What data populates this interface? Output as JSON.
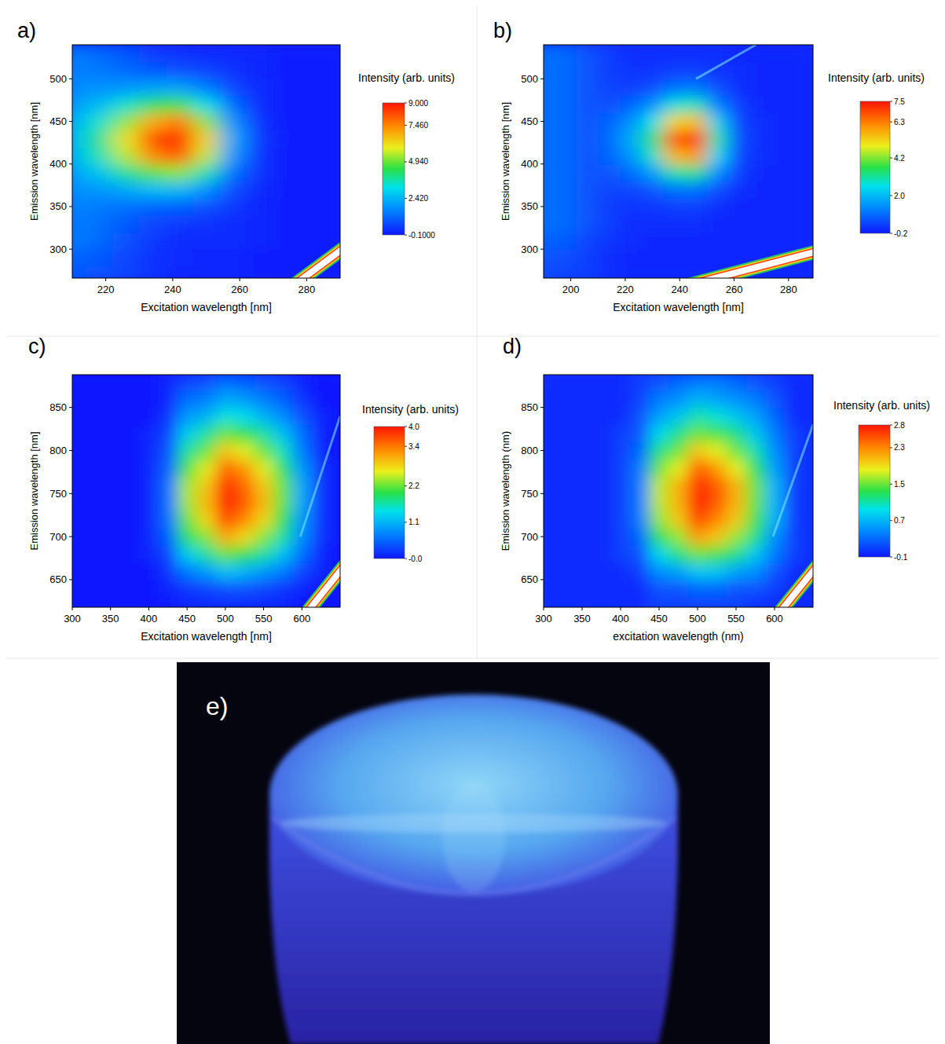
{
  "chart_data": [
    {
      "type": "heatmap",
      "panel_label": "a)",
      "xlabel": "Excitation wavelength [nm]",
      "ylabel": "Emission wavelength [nm]",
      "xlim": [
        210,
        290
      ],
      "ylim": [
        266,
        540
      ],
      "xticks": [
        220,
        240,
        260,
        280
      ],
      "yticks": [
        300,
        350,
        400,
        450,
        500
      ],
      "x": [
        210,
        218,
        226,
        234,
        242,
        250,
        258,
        266,
        274,
        282,
        290
      ],
      "y": [
        270,
        290,
        310,
        330,
        350,
        370,
        390,
        410,
        430,
        450,
        470,
        490,
        510,
        530
      ],
      "cells": [
        [
          1.0,
          0.8,
          0.6,
          0.3,
          0.1,
          0.1,
          0.1,
          0,
          0,
          0,
          0
        ],
        [
          1.1,
          0.9,
          0.6,
          0.3,
          0.2,
          0.1,
          0.1,
          0,
          0,
          0,
          0
        ],
        [
          1.5,
          1.2,
          0.8,
          0.4,
          0.2,
          0.2,
          0.2,
          0.1,
          0,
          0,
          0
        ],
        [
          1.5,
          1.3,
          0.9,
          0.6,
          0.4,
          0.3,
          0.2,
          0.1,
          0,
          0,
          0
        ],
        [
          1.6,
          1.4,
          1.3,
          1.1,
          1.0,
          0.8,
          0.4,
          0.1,
          0,
          0,
          0
        ],
        [
          1.8,
          1.9,
          2.2,
          2.5,
          2.5,
          1.8,
          0.7,
          0.2,
          0,
          0,
          0
        ],
        [
          2.1,
          2.7,
          3.8,
          4.8,
          5.2,
          3.6,
          1.3,
          0.3,
          0,
          0,
          0
        ],
        [
          2.5,
          3.6,
          5.5,
          7.4,
          8.1,
          5.6,
          1.9,
          0.3,
          0,
          0,
          0
        ],
        [
          2.6,
          3.9,
          6.1,
          8.3,
          9.0,
          6.3,
          2.2,
          0.4,
          0,
          0,
          0
        ],
        [
          2.4,
          3.4,
          5.2,
          6.9,
          7.6,
          5.2,
          1.8,
          0.3,
          0,
          0,
          0
        ],
        [
          2.0,
          2.5,
          3.4,
          4.3,
          4.6,
          3.2,
          1.2,
          0.2,
          0,
          0,
          0
        ],
        [
          1.7,
          1.8,
          1.9,
          2.1,
          2.1,
          1.5,
          0.6,
          0.2,
          0,
          0,
          0
        ],
        [
          1.6,
          1.4,
          1.2,
          0.9,
          0.8,
          0.6,
          0.3,
          0.1,
          0,
          0,
          0
        ],
        [
          1.5,
          1.2,
          0.9,
          0.5,
          0.3,
          0.2,
          0.2,
          0.1,
          0,
          0,
          0
        ]
      ],
      "colorbar": {
        "title": "Intensity (arb. units)",
        "range": [
          -0.1,
          9
        ],
        "ticks": [
          {
            "value": 9,
            "label": "9.000"
          },
          {
            "value": 7.46,
            "label": "7.460"
          },
          {
            "value": 4.94,
            "label": "4.940"
          },
          {
            "value": 2.42,
            "label": "2.420"
          },
          {
            "value": -0.1,
            "label": "-0.1000"
          }
        ]
      },
      "saturated_band": {
        "x": [
          279,
          290
        ],
        "y": [
          266,
          298
        ]
      }
    },
    {
      "type": "heatmap",
      "panel_label": "b)",
      "xlabel": "Excitation wavelength [nm]",
      "ylabel": "Emission wavelength [nm]",
      "xlim": [
        190,
        289
      ],
      "ylim": [
        266,
        540
      ],
      "xticks": [
        200,
        220,
        240,
        260,
        280
      ],
      "yticks": [
        300,
        350,
        400,
        450,
        500
      ],
      "x": [
        190,
        198,
        206,
        214,
        222,
        230,
        238,
        246,
        254,
        262,
        270,
        278,
        286
      ],
      "y": [
        270,
        290,
        310,
        330,
        350,
        370,
        390,
        410,
        430,
        450,
        470,
        490,
        510,
        530
      ],
      "cells": [
        [
          0.5,
          0.4,
          0.3,
          0.1,
          0,
          0,
          0,
          0,
          0,
          0,
          0,
          0,
          0
        ],
        [
          0.6,
          0.5,
          0.3,
          0.1,
          0,
          0,
          0,
          0,
          0,
          0,
          0,
          0,
          0
        ],
        [
          0.8,
          0.7,
          0.4,
          0.2,
          0.1,
          0,
          0,
          0,
          0,
          0,
          0,
          0,
          0
        ],
        [
          1.0,
          0.9,
          0.6,
          0.3,
          0.1,
          0.1,
          0.1,
          0.1,
          0,
          0,
          0,
          0,
          0
        ],
        [
          1.0,
          0.9,
          0.6,
          0.3,
          0.2,
          0.2,
          0.3,
          0.3,
          0.1,
          0,
          0,
          0,
          0
        ],
        [
          1.0,
          0.9,
          0.6,
          0.4,
          0.4,
          0.6,
          1.0,
          1.0,
          0.5,
          0.1,
          0,
          0,
          0
        ],
        [
          1.0,
          0.9,
          0.6,
          0.6,
          0.9,
          1.6,
          3.0,
          3.2,
          1.4,
          0.3,
          0,
          0,
          0
        ],
        [
          1.0,
          0.9,
          0.6,
          0.8,
          1.5,
          2.8,
          5.6,
          5.9,
          2.4,
          0.4,
          0.1,
          0,
          0
        ],
        [
          1.0,
          0.9,
          0.6,
          0.9,
          1.8,
          3.3,
          6.8,
          7.2,
          3.0,
          0.5,
          0.1,
          0,
          0
        ],
        [
          1.0,
          0.9,
          0.6,
          0.8,
          1.4,
          2.6,
          5.2,
          5.5,
          2.3,
          0.4,
          0.1,
          0,
          0
        ],
        [
          1.0,
          0.9,
          0.6,
          0.5,
          0.8,
          1.4,
          2.7,
          2.9,
          1.2,
          0.3,
          0,
          0,
          0
        ],
        [
          1.0,
          0.9,
          0.6,
          0.4,
          0.3,
          0.5,
          1.0,
          1.1,
          0.5,
          0.1,
          0,
          0,
          0
        ],
        [
          1.0,
          0.9,
          0.6,
          0.3,
          0.2,
          0.2,
          0.3,
          0.3,
          0.2,
          0.1,
          0,
          0,
          0
        ],
        [
          1.0,
          0.9,
          0.6,
          0.3,
          0.1,
          0.1,
          0.1,
          0.1,
          0.1,
          0,
          0,
          0,
          0
        ]
      ],
      "colorbar": {
        "title": "Intensity (arb. units)",
        "range": [
          -0.2,
          7.5
        ],
        "ticks": [
          7.5,
          6.3,
          4.2,
          {
            "value": 2,
            "label": "2.0"
          },
          -0.2
        ]
      },
      "saturated_band": {
        "x": [
          253,
          289
        ],
        "y": [
          266,
          296
        ]
      },
      "faint_line": {
        "x": [
          246,
          268
        ],
        "y": [
          500,
          540
        ]
      }
    },
    {
      "type": "heatmap",
      "panel_label": "c)",
      "xlabel": "Excitation wavelength [nm]",
      "ylabel": "Emission wavelength [nm]",
      "xlim": [
        300,
        650
      ],
      "ylim": [
        618,
        888
      ],
      "xticks": [
        300,
        350,
        400,
        450,
        500,
        550,
        600
      ],
      "yticks": [
        650,
        700,
        750,
        800,
        850
      ],
      "x": [
        300,
        325,
        350,
        375,
        400,
        425,
        450,
        475,
        500,
        525,
        550,
        575,
        600,
        625,
        650
      ],
      "y": [
        620,
        640,
        660,
        680,
        700,
        720,
        740,
        760,
        780,
        800,
        820,
        840,
        860,
        880
      ],
      "cells": [
        [
          0,
          0,
          0,
          0,
          0,
          0,
          0.1,
          0.1,
          0.1,
          0.1,
          0.1,
          0.1,
          0,
          0,
          0
        ],
        [
          0,
          0,
          0,
          0,
          0,
          0.1,
          0.2,
          0.3,
          0.4,
          0.4,
          0.3,
          0.2,
          0.1,
          0,
          0
        ],
        [
          0,
          0,
          0,
          0,
          0,
          0.2,
          0.7,
          0.9,
          1.2,
          1.1,
          0.9,
          0.7,
          0.3,
          0.1,
          0
        ],
        [
          0,
          0,
          0,
          0,
          0.1,
          0.3,
          1.3,
          1.7,
          2.2,
          2.0,
          1.7,
          1.2,
          0.6,
          0.1,
          0
        ],
        [
          0,
          0,
          0,
          0,
          0.1,
          0.5,
          1.9,
          2.3,
          3.1,
          2.8,
          2.3,
          1.7,
          0.8,
          0.2,
          0
        ],
        [
          0,
          0,
          0,
          0,
          0.1,
          0.6,
          2.2,
          2.8,
          3.7,
          3.3,
          2.8,
          2.0,
          0.9,
          0.2,
          0
        ],
        [
          0,
          0,
          0,
          0,
          0.1,
          0.6,
          2.4,
          3.0,
          4.0,
          3.6,
          3.0,
          2.2,
          1.0,
          0.2,
          0
        ],
        [
          0,
          0,
          0,
          0,
          0.1,
          0.6,
          2.4,
          2.9,
          3.9,
          3.5,
          2.9,
          2.2,
          1.0,
          0.2,
          0
        ],
        [
          0,
          0,
          0,
          0,
          0.1,
          0.5,
          2.1,
          2.6,
          3.5,
          3.2,
          2.6,
          1.9,
          0.9,
          0.2,
          0
        ],
        [
          0,
          0,
          0,
          0,
          0.1,
          0.4,
          1.7,
          2.2,
          2.9,
          2.6,
          2.2,
          1.6,
          0.7,
          0.1,
          0
        ],
        [
          0,
          0,
          0,
          0,
          0.1,
          0.3,
          1.3,
          1.7,
          2.2,
          2.0,
          1.7,
          1.2,
          0.6,
          0.1,
          0
        ],
        [
          0,
          0,
          0,
          0,
          0,
          0.2,
          0.9,
          1.1,
          1.5,
          1.4,
          1.1,
          0.8,
          0.4,
          0.1,
          0
        ],
        [
          0,
          0,
          0,
          0,
          0,
          0.1,
          0.6,
          0.7,
          1.0,
          0.9,
          0.7,
          0.5,
          0.2,
          0,
          0
        ],
        [
          0,
          0,
          0,
          0,
          0,
          0.1,
          0.3,
          0.4,
          0.6,
          0.5,
          0.4,
          0.3,
          0.1,
          0,
          0
        ]
      ],
      "colorbar": {
        "title": "Intensity (arb. units)",
        "range": [
          0,
          4
        ],
        "ticks": [
          {
            "value": 4,
            "label": "4.0"
          },
          3.4,
          2.2,
          1.1,
          {
            "value": 0,
            "label": "-0.0"
          }
        ]
      },
      "saturated_band": {
        "x": [
          612,
          650
        ],
        "y": [
          618,
          660
        ]
      },
      "faint_line": {
        "x": [
          598,
          650
        ],
        "y": [
          700,
          840
        ]
      }
    },
    {
      "type": "heatmap",
      "panel_label": "d)",
      "xlabel": "excitation wavelength (nm)",
      "ylabel": "Emission wavelength (nm)",
      "xlim": [
        300,
        650
      ],
      "ylim": [
        618,
        888
      ],
      "xticks": [
        300,
        350,
        400,
        450,
        500,
        550,
        600
      ],
      "yticks": [
        650,
        700,
        750,
        800,
        850
      ],
      "x": [
        300,
        325,
        350,
        375,
        400,
        425,
        450,
        475,
        500,
        525,
        550,
        575,
        600,
        625,
        650
      ],
      "y": [
        620,
        640,
        660,
        680,
        700,
        720,
        740,
        760,
        780,
        800,
        820,
        840,
        860,
        880
      ],
      "cells": [
        [
          0,
          0,
          0,
          0,
          0,
          0,
          0.1,
          0.1,
          0.1,
          0.1,
          0.1,
          0,
          0,
          0,
          0
        ],
        [
          0,
          0,
          0,
          0,
          0,
          0,
          0.2,
          0.2,
          0.3,
          0.3,
          0.2,
          0.2,
          0.1,
          0,
          0
        ],
        [
          0,
          0,
          0,
          0,
          0,
          0.1,
          0.5,
          0.6,
          0.8,
          0.8,
          0.6,
          0.5,
          0.2,
          0,
          0
        ],
        [
          0,
          0,
          0,
          0,
          0.1,
          0.2,
          0.9,
          1.2,
          1.5,
          1.4,
          1.2,
          0.8,
          0.4,
          0.1,
          0
        ],
        [
          0,
          0,
          0,
          0,
          0.1,
          0.3,
          1.3,
          1.6,
          2.2,
          2.0,
          1.6,
          1.2,
          0.5,
          0.1,
          0
        ],
        [
          0,
          0,
          0,
          0,
          0.1,
          0.4,
          1.6,
          2.0,
          2.6,
          2.3,
          2.0,
          1.4,
          0.7,
          0.1,
          0
        ],
        [
          0,
          0,
          0,
          0,
          0.1,
          0.4,
          1.7,
          2.1,
          2.8,
          2.5,
          2.1,
          1.5,
          0.7,
          0.1,
          0
        ],
        [
          0,
          0,
          0,
          0,
          0.1,
          0.4,
          1.7,
          2.1,
          2.7,
          2.5,
          2.1,
          1.5,
          0.7,
          0.1,
          0
        ],
        [
          0,
          0,
          0,
          0,
          0.1,
          0.4,
          1.5,
          1.8,
          2.5,
          2.2,
          1.8,
          1.3,
          0.6,
          0.1,
          0
        ],
        [
          0,
          0,
          0,
          0,
          0.1,
          0.3,
          1.2,
          1.5,
          2.0,
          1.8,
          1.5,
          1.1,
          0.5,
          0.1,
          0
        ],
        [
          0,
          0,
          0,
          0,
          0.1,
          0.2,
          0.9,
          1.2,
          1.5,
          1.4,
          1.2,
          0.8,
          0.4,
          0.1,
          0
        ],
        [
          0,
          0,
          0,
          0,
          0,
          0.2,
          0.6,
          0.8,
          1.1,
          1.0,
          0.8,
          0.6,
          0.3,
          0,
          0
        ],
        [
          0,
          0,
          0,
          0,
          0,
          0.1,
          0.4,
          0.5,
          0.7,
          0.6,
          0.5,
          0.4,
          0.2,
          0,
          0
        ],
        [
          0,
          0,
          0,
          0,
          0,
          0.1,
          0.2,
          0.3,
          0.4,
          0.4,
          0.3,
          0.2,
          0.1,
          0,
          0
        ]
      ],
      "colorbar": {
        "title": "Intensity (arb. units)",
        "range": [
          -0.1,
          2.8
        ],
        "ticks": [
          2.8,
          2.3,
          1.5,
          0.7,
          -0.1
        ]
      },
      "saturated_band": {
        "x": [
          612,
          650
        ],
        "y": [
          618,
          660
        ]
      },
      "faint_line": {
        "x": [
          598,
          650
        ],
        "y": [
          700,
          830
        ]
      }
    }
  ],
  "photo": {
    "label": "e)"
  }
}
